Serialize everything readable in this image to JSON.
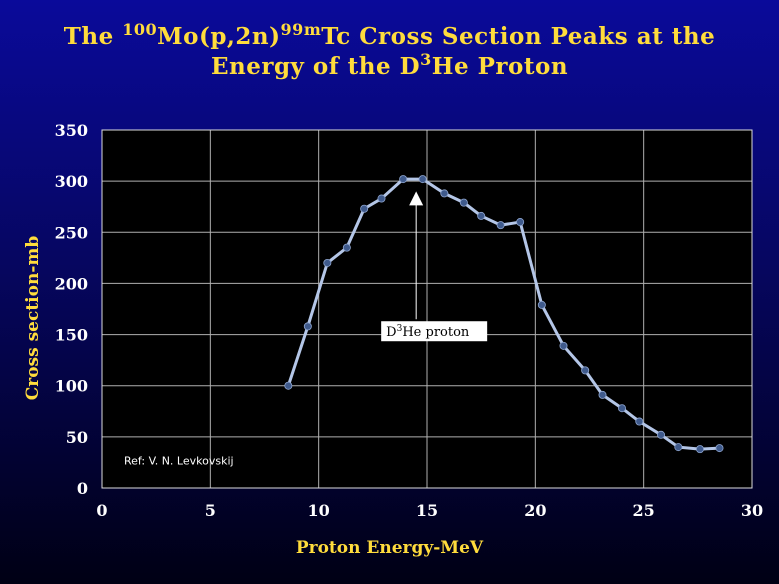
{
  "chart_data": {
    "type": "line",
    "title_parts": [
      "The ",
      "100",
      "Mo(p,2n)",
      "99m",
      "Tc Cross Section Peaks at the",
      "Energy of the D",
      "3",
      "He Proton"
    ],
    "xlabel": "Proton Energy-MeV",
    "ylabel": "Cross section-mb",
    "xlim": [
      0,
      30
    ],
    "ylim": [
      0,
      350
    ],
    "x_ticks": [
      "0",
      "5",
      "10",
      "15",
      "20",
      "25",
      "30"
    ],
    "y_ticks": [
      "0",
      "50",
      "100",
      "150",
      "200",
      "250",
      "300",
      "350"
    ],
    "grid": true,
    "legend": "none",
    "series": [
      {
        "x": [
          8.6,
          9.5,
          10.4,
          11.3,
          12.1,
          12.9,
          13.9,
          14.8,
          15.8,
          16.7,
          17.5,
          18.4,
          19.3,
          20.3,
          21.3,
          22.3,
          23.1,
          24.0,
          24.8,
          25.8,
          26.6,
          27.6,
          28.5
        ],
        "y": [
          100,
          158,
          220,
          235,
          273,
          283,
          302,
          302,
          288,
          279,
          266,
          257,
          260,
          179,
          139,
          115,
          91,
          78,
          65,
          52,
          40,
          38,
          39
        ]
      }
    ],
    "annotation": {
      "label_main": "D",
      "label_sup": "3",
      "label_rest": "He proton",
      "arrow_x": 14.5,
      "arrow_tip_y": 290,
      "arrow_tail_y": 165
    },
    "reference": "Ref: V. N. Levkovskij",
    "colors": {
      "plot_bg": "#000000",
      "grid": "#b0b0b0",
      "line": "#b4c6e7",
      "marker": "#3f5a8c",
      "title": "#ffdc3c",
      "tick_label": "#ffffff"
    }
  }
}
